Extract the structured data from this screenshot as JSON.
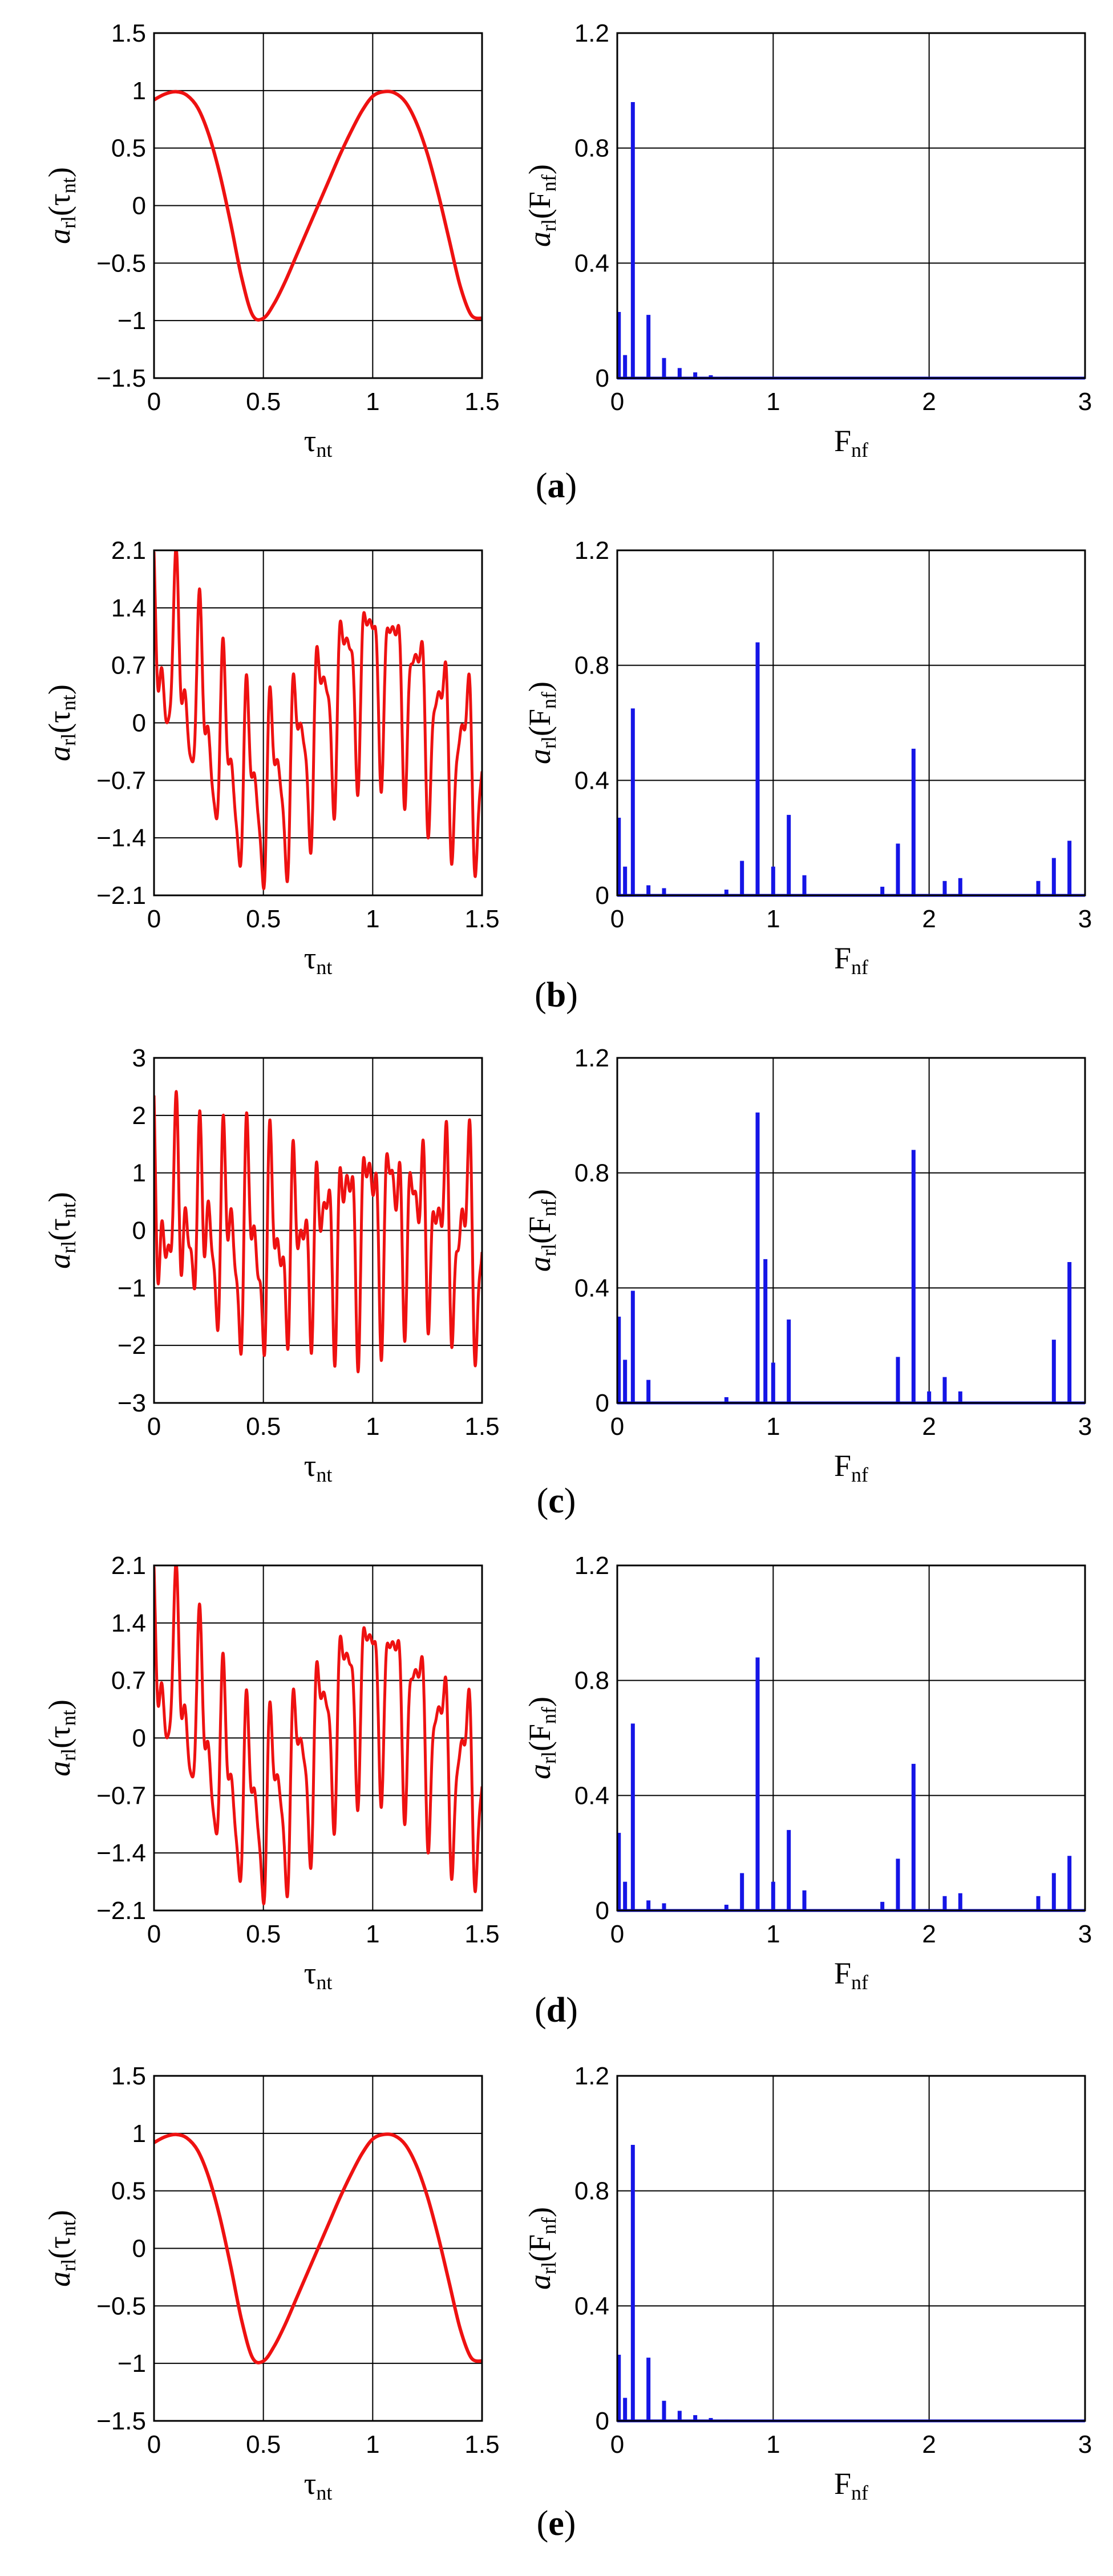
{
  "figure": {
    "panels": [
      {
        "caption_open": "(",
        "caption_letter": "a",
        "caption_close": ")"
      },
      {
        "caption_open": "(",
        "caption_letter": "b",
        "caption_close": ")"
      },
      {
        "caption_open": "(",
        "caption_letter": "c",
        "caption_close": ")"
      },
      {
        "caption_open": "(",
        "caption_letter": "d",
        "caption_close": ")"
      },
      {
        "caption_open": "(",
        "caption_letter": "e",
        "caption_close": ")"
      }
    ],
    "colors": {
      "time": "#ee1111",
      "spectrum": "#1515e6",
      "grid": "#000000"
    }
  },
  "chart_data": [
    {
      "panel": "a",
      "type": "line",
      "series_color": "#ee1111",
      "xlabel": {
        "main": "τ",
        "sub": "nt"
      },
      "ylabel": {
        "main": "a",
        "sub1": "rl",
        "mid": "(τ",
        "sub2": "nt",
        "end": ")"
      },
      "xlim": [
        0,
        1.5
      ],
      "ylim": [
        -1.5,
        1.5
      ],
      "xticks": [
        0,
        0.5,
        1,
        1.5
      ],
      "xtick_labels": [
        "0",
        "0.5",
        "1",
        "1.5"
      ],
      "yticks": [
        -1.5,
        -1,
        -0.5,
        0,
        0.5,
        1,
        1.5
      ],
      "ytick_labels": [
        "−1.5",
        "−1",
        "−0.5",
        "0",
        "0.5",
        "1",
        "1.5"
      ],
      "grid": true,
      "series": [
        {
          "name": "a_rl(τ_nt)",
          "kind": "smooth",
          "x": [
            0,
            0.05,
            0.1,
            0.15,
            0.2,
            0.25,
            0.3,
            0.35,
            0.4,
            0.45,
            0.5,
            0.55,
            0.6,
            0.65,
            0.7,
            0.75,
            0.8,
            0.85,
            0.9,
            0.95,
            1.0,
            1.05,
            1.1,
            1.15,
            1.2,
            1.25,
            1.3,
            1.35,
            1.4,
            1.45,
            1.5
          ],
          "y": [
            0.92,
            0.97,
            0.99,
            0.96,
            0.85,
            0.62,
            0.28,
            -0.15,
            -0.62,
            -0.95,
            -0.98,
            -0.85,
            -0.66,
            -0.44,
            -0.22,
            0.0,
            0.22,
            0.44,
            0.64,
            0.82,
            0.95,
            0.99,
            0.98,
            0.9,
            0.72,
            0.45,
            0.1,
            -0.3,
            -0.7,
            -0.95,
            -0.98
          ]
        }
      ]
    },
    {
      "panel": "a",
      "type": "bar",
      "series_color": "#1515e6",
      "xlabel": {
        "main": "F",
        "sub": "nf"
      },
      "ylabel": {
        "main": "a",
        "sub1": "rl",
        "mid": "(F",
        "sub2": "nf",
        "end": ")"
      },
      "xlim": [
        0,
        3
      ],
      "ylim": [
        0,
        1.2
      ],
      "xticks": [
        0,
        1,
        2,
        3
      ],
      "xtick_labels": [
        "0",
        "1",
        "2",
        "3"
      ],
      "yticks": [
        0,
        0.4,
        0.8,
        1.2
      ],
      "ytick_labels": [
        "0",
        "0.4",
        "0.8",
        "1.2"
      ],
      "grid": true,
      "series": [
        {
          "name": "a_rl(F_nf)",
          "x": [
            0.01,
            0.05,
            0.1,
            0.2,
            0.3,
            0.4,
            0.5,
            0.6,
            0.7
          ],
          "y": [
            0.23,
            0.08,
            0.96,
            0.22,
            0.07,
            0.035,
            0.02,
            0.01,
            0.005
          ]
        }
      ]
    },
    {
      "panel": "b",
      "type": "line",
      "series_color": "#ee1111",
      "xlabel": {
        "main": "τ",
        "sub": "nt"
      },
      "ylabel": {
        "main": "a",
        "sub1": "rl",
        "mid": "(τ",
        "sub2": "nt",
        "end": ")"
      },
      "xlim": [
        0,
        1.5
      ],
      "ylim": [
        -2.1,
        2.1
      ],
      "xticks": [
        0,
        0.5,
        1,
        1.5
      ],
      "xtick_labels": [
        "0",
        "0.5",
        "1",
        "1.5"
      ],
      "yticks": [
        -2.1,
        -1.4,
        -0.7,
        0,
        0.7,
        1.4,
        2.1
      ],
      "ytick_labels": [
        "−2.1",
        "−1.4",
        "−0.7",
        "0",
        "0.7",
        "1.4",
        "2.1"
      ],
      "grid": true,
      "series": [
        {
          "name": "a_rl(τ_nt)",
          "kind": "composite",
          "components": [
            {
              "amp": 0.65,
              "freq": 0.93,
              "phase": 0.0
            },
            {
              "amp": 0.85,
              "freq": 9.1,
              "phase": 0.3
            },
            {
              "amp": 0.5,
              "freq": 18.6,
              "phase": 1.1
            },
            {
              "amp": 0.25,
              "freq": 1.1,
              "phase": 0.4
            },
            {
              "amp": 0.2,
              "freq": 28.3,
              "phase": 0.6
            }
          ],
          "clip": [
            -2.1,
            2.1
          ]
        }
      ]
    },
    {
      "panel": "b",
      "type": "bar",
      "series_color": "#1515e6",
      "xlabel": {
        "main": "F",
        "sub": "nf"
      },
      "ylabel": {
        "main": "a",
        "sub1": "rl",
        "mid": "(F",
        "sub2": "nf",
        "end": ")"
      },
      "xlim": [
        0,
        3
      ],
      "ylim": [
        0,
        1.2
      ],
      "xticks": [
        0,
        1,
        2,
        3
      ],
      "xtick_labels": [
        "0",
        "1",
        "2",
        "3"
      ],
      "yticks": [
        0,
        0.4,
        0.8,
        1.2
      ],
      "ytick_labels": [
        "0",
        "0.4",
        "0.8",
        "1.2"
      ],
      "grid": true,
      "series": [
        {
          "name": "a_rl(F_nf)",
          "x": [
            0.01,
            0.05,
            0.1,
            0.2,
            0.3,
            0.7,
            0.8,
            0.9,
            1.0,
            1.1,
            1.2,
            1.7,
            1.8,
            1.9,
            2.1,
            2.2,
            2.7,
            2.8,
            2.9
          ],
          "y": [
            0.27,
            0.1,
            0.65,
            0.035,
            0.025,
            0.02,
            0.12,
            0.88,
            0.1,
            0.28,
            0.07,
            0.03,
            0.18,
            0.51,
            0.05,
            0.06,
            0.05,
            0.13,
            0.19
          ]
        }
      ]
    },
    {
      "panel": "c",
      "type": "line",
      "series_color": "#ee1111",
      "xlabel": {
        "main": "τ",
        "sub": "nt"
      },
      "ylabel": {
        "main": "a",
        "sub1": "rl",
        "mid": "(τ",
        "sub2": "nt",
        "end": ")"
      },
      "xlim": [
        0,
        1.5
      ],
      "ylim": [
        -3,
        3
      ],
      "xticks": [
        0,
        0.5,
        1,
        1.5
      ],
      "xtick_labels": [
        "0",
        "0.5",
        "1",
        "1.5"
      ],
      "yticks": [
        -3,
        -2,
        -1,
        0,
        1,
        2,
        3
      ],
      "ytick_labels": [
        "−3",
        "−2",
        "−1",
        "0",
        "1",
        "2",
        "3"
      ],
      "grid": true,
      "series": [
        {
          "name": "a_rl(τ_nt)",
          "kind": "composite",
          "components": [
            {
              "amp": 0.3,
              "freq": 0.93,
              "phase": 0.0
            },
            {
              "amp": 1.0,
              "freq": 9.1,
              "phase": 0.2
            },
            {
              "amp": 0.88,
              "freq": 18.6,
              "phase": 0.9
            },
            {
              "amp": 0.5,
              "freq": 28.3,
              "phase": 0.5
            },
            {
              "amp": 0.3,
              "freq": 11.0,
              "phase": 1.3
            }
          ],
          "clip": [
            -3,
            3
          ]
        }
      ]
    },
    {
      "panel": "c",
      "type": "bar",
      "series_color": "#1515e6",
      "xlabel": {
        "main": "F",
        "sub": "nf"
      },
      "ylabel": {
        "main": "a",
        "sub1": "rl",
        "mid": "(F",
        "sub2": "nf",
        "end": ")"
      },
      "xlim": [
        0,
        3
      ],
      "ylim": [
        0,
        1.2
      ],
      "xticks": [
        0,
        1,
        2,
        3
      ],
      "xtick_labels": [
        "0",
        "1",
        "2",
        "3"
      ],
      "yticks": [
        0,
        0.4,
        0.8,
        1.2
      ],
      "ytick_labels": [
        "0",
        "0.4",
        "0.8",
        "1.2"
      ],
      "grid": true,
      "series": [
        {
          "name": "a_rl(F_nf)",
          "x": [
            0.01,
            0.05,
            0.1,
            0.2,
            0.7,
            0.9,
            0.95,
            1.0,
            1.1,
            1.8,
            1.9,
            2.0,
            2.1,
            2.2,
            2.8,
            2.9
          ],
          "y": [
            0.3,
            0.15,
            0.39,
            0.08,
            0.02,
            1.01,
            0.5,
            0.14,
            0.29,
            0.16,
            0.88,
            0.04,
            0.09,
            0.04,
            0.22,
            0.49
          ]
        }
      ]
    },
    {
      "panel": "d",
      "type": "line",
      "series_color": "#ee1111",
      "xlabel": {
        "main": "τ",
        "sub": "nt"
      },
      "ylabel": {
        "main": "a",
        "sub1": "rl",
        "mid": "(τ",
        "sub2": "nt",
        "end": ")"
      },
      "xlim": [
        0,
        1.5
      ],
      "ylim": [
        -2.1,
        2.1
      ],
      "xticks": [
        0,
        0.5,
        1,
        1.5
      ],
      "xtick_labels": [
        "0",
        "0.5",
        "1",
        "1.5"
      ],
      "yticks": [
        -2.1,
        -1.4,
        -0.7,
        0,
        0.7,
        1.4,
        2.1
      ],
      "ytick_labels": [
        "−2.1",
        "−1.4",
        "−0.7",
        "0",
        "0.7",
        "1.4",
        "2.1"
      ],
      "grid": true,
      "series": [
        {
          "name": "a_rl(τ_nt)",
          "kind": "composite",
          "components": [
            {
              "amp": 0.65,
              "freq": 0.93,
              "phase": 0.0
            },
            {
              "amp": 0.85,
              "freq": 9.1,
              "phase": 0.3
            },
            {
              "amp": 0.5,
              "freq": 18.6,
              "phase": 1.1
            },
            {
              "amp": 0.25,
              "freq": 1.1,
              "phase": 0.4
            },
            {
              "amp": 0.2,
              "freq": 28.3,
              "phase": 0.6
            }
          ],
          "clip": [
            -2.1,
            2.1
          ]
        }
      ]
    },
    {
      "panel": "d",
      "type": "bar",
      "series_color": "#1515e6",
      "xlabel": {
        "main": "F",
        "sub": "nf"
      },
      "ylabel": {
        "main": "a",
        "sub1": "rl",
        "mid": "(F",
        "sub2": "nf",
        "end": ")"
      },
      "xlim": [
        0,
        3
      ],
      "ylim": [
        0,
        1.2
      ],
      "xticks": [
        0,
        1,
        2,
        3
      ],
      "xtick_labels": [
        "0",
        "1",
        "2",
        "3"
      ],
      "yticks": [
        0,
        0.4,
        0.8,
        1.2
      ],
      "ytick_labels": [
        "0",
        "0.4",
        "0.8",
        "1.2"
      ],
      "grid": true,
      "series": [
        {
          "name": "a_rl(F_nf)",
          "x": [
            0.01,
            0.05,
            0.1,
            0.2,
            0.3,
            0.7,
            0.8,
            0.9,
            1.0,
            1.1,
            1.2,
            1.7,
            1.8,
            1.9,
            2.1,
            2.2,
            2.7,
            2.8,
            2.9
          ],
          "y": [
            0.27,
            0.1,
            0.65,
            0.035,
            0.025,
            0.02,
            0.13,
            0.88,
            0.1,
            0.28,
            0.07,
            0.03,
            0.18,
            0.51,
            0.05,
            0.06,
            0.05,
            0.13,
            0.19
          ]
        }
      ]
    },
    {
      "panel": "e",
      "type": "line",
      "series_color": "#ee1111",
      "xlabel": {
        "main": "τ",
        "sub": "nt"
      },
      "ylabel": {
        "main": "a",
        "sub1": "rl",
        "mid": "(τ",
        "sub2": "nt",
        "end": ")"
      },
      "xlim": [
        0,
        1.5
      ],
      "ylim": [
        -1.5,
        1.5
      ],
      "xticks": [
        0,
        0.5,
        1,
        1.5
      ],
      "xtick_labels": [
        "0",
        "0.5",
        "1",
        "1.5"
      ],
      "yticks": [
        -1.5,
        -1,
        -0.5,
        0,
        0.5,
        1,
        1.5
      ],
      "ytick_labels": [
        "−1.5",
        "−1",
        "−0.5",
        "0",
        "0.5",
        "1",
        "1.5"
      ],
      "grid": true,
      "series": [
        {
          "name": "a_rl(τ_nt)",
          "kind": "smooth",
          "x": [
            0,
            0.05,
            0.1,
            0.15,
            0.2,
            0.25,
            0.3,
            0.35,
            0.4,
            0.45,
            0.5,
            0.55,
            0.6,
            0.65,
            0.7,
            0.75,
            0.8,
            0.85,
            0.9,
            0.95,
            1.0,
            1.05,
            1.1,
            1.15,
            1.2,
            1.25,
            1.3,
            1.35,
            1.4,
            1.45,
            1.5
          ],
          "y": [
            0.92,
            0.97,
            0.99,
            0.96,
            0.85,
            0.62,
            0.28,
            -0.15,
            -0.62,
            -0.95,
            -0.98,
            -0.85,
            -0.66,
            -0.44,
            -0.22,
            0.0,
            0.22,
            0.44,
            0.64,
            0.82,
            0.95,
            0.99,
            0.98,
            0.9,
            0.72,
            0.45,
            0.1,
            -0.3,
            -0.7,
            -0.95,
            -0.98
          ]
        }
      ]
    },
    {
      "panel": "e",
      "type": "bar",
      "series_color": "#1515e6",
      "xlabel": {
        "main": "F",
        "sub": "nf"
      },
      "ylabel": {
        "main": "a",
        "sub1": "rl",
        "mid": "(F",
        "sub2": "nf",
        "end": ")"
      },
      "xlim": [
        0,
        3
      ],
      "ylim": [
        0,
        1.2
      ],
      "xticks": [
        0,
        1,
        2,
        3
      ],
      "xtick_labels": [
        "0",
        "1",
        "2",
        "3"
      ],
      "yticks": [
        0,
        0.4,
        0.8,
        1.2
      ],
      "ytick_labels": [
        "0",
        "0.4",
        "0.8",
        "1.2"
      ],
      "grid": true,
      "series": [
        {
          "name": "a_rl(F_nf)",
          "x": [
            0.01,
            0.05,
            0.1,
            0.2,
            0.3,
            0.4,
            0.5,
            0.6,
            0.7
          ],
          "y": [
            0.23,
            0.08,
            0.96,
            0.22,
            0.07,
            0.035,
            0.02,
            0.01,
            0.005
          ]
        }
      ]
    }
  ]
}
